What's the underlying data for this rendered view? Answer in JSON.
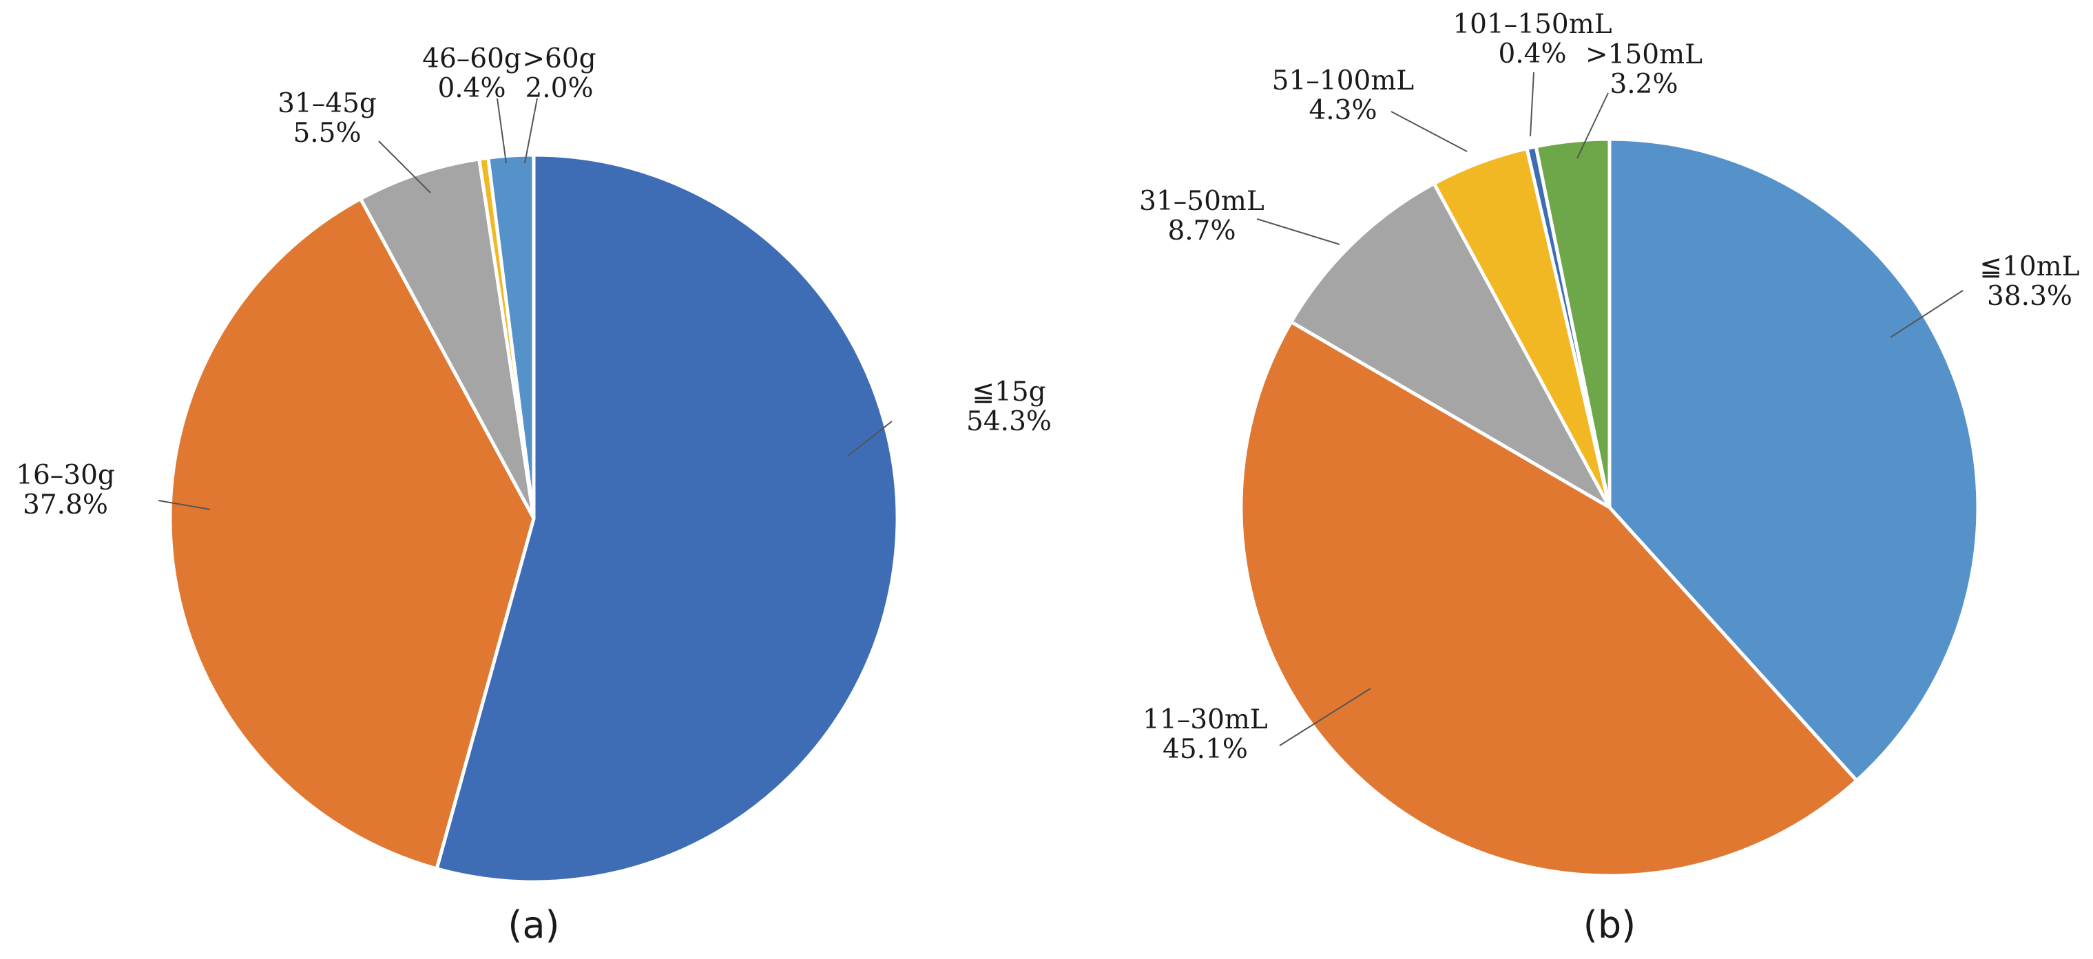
{
  "chart_data": [
    {
      "type": "pie",
      "panel_label": "(a)",
      "start": "top",
      "direction": "clockwise",
      "slices": [
        {
          "label": "≦15g",
          "percent_label": "54.3%",
          "value": 54.3,
          "color": "#3E6DB5"
        },
        {
          "label": "16–30g",
          "percent_label": "37.8%",
          "value": 37.8,
          "color": "#E07832"
        },
        {
          "label": "31–45g",
          "percent_label": "5.5%",
          "value": 5.5,
          "color": "#A5A5A5"
        },
        {
          "label": "46–60g",
          "percent_label": "0.4%",
          "value": 0.4,
          "color": "#F2B824"
        },
        {
          "label": ">60g",
          "percent_label": "2.0%",
          "value": 2.0,
          "color": "#5592CA"
        }
      ]
    },
    {
      "type": "pie",
      "panel_label": "(b)",
      "start": "top",
      "direction": "clockwise",
      "slices": [
        {
          "label": "≦10mL",
          "percent_label": "38.3%",
          "value": 38.3,
          "color": "#5592CA"
        },
        {
          "label": "11–30mL",
          "percent_label": "45.1%",
          "value": 45.1,
          "color": "#E07832"
        },
        {
          "label": "31–50mL",
          "percent_label": "8.7%",
          "value": 8.7,
          "color": "#A5A5A5"
        },
        {
          "label": "51–100mL",
          "percent_label": "4.3%",
          "value": 4.3,
          "color": "#F2B824"
        },
        {
          "label": "101–150mL",
          "percent_label": "0.4%",
          "value": 0.4,
          "color": "#3E6DB5"
        },
        {
          "label": ">150mL",
          "percent_label": "3.2%",
          "value": 3.2,
          "color": "#6EA64A"
        }
      ]
    }
  ]
}
